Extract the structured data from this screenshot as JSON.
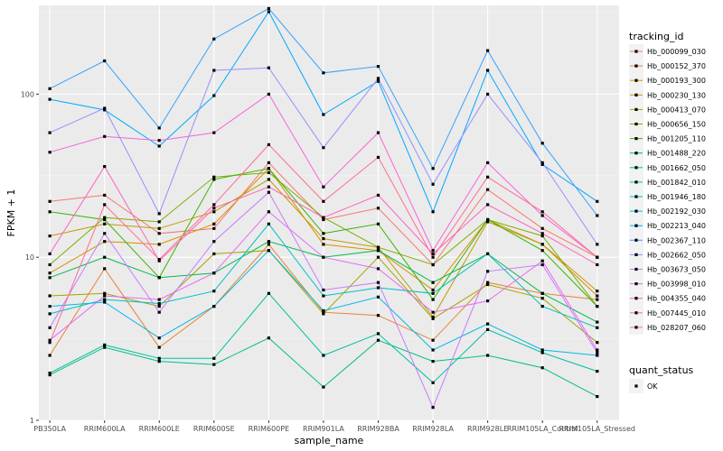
{
  "chart_data": {
    "type": "line",
    "title": "",
    "xlabel": "sample_name",
    "ylabel": "FPKM + 1",
    "y_scale": "log10",
    "ylim": [
      1,
      350
    ],
    "y_ticks": [
      1,
      10,
      100
    ],
    "y_tick_labels": [
      "1",
      "10",
      "100"
    ],
    "grid": true,
    "legend_position": "right",
    "categories": [
      "PB350LA",
      "RRIM600LA",
      "RRIM600LE",
      "RRIM600SE",
      "RRIM600PE",
      "RRIM901LA",
      "RRIM928BA",
      "RRIM928LA",
      "RRIM928LE",
      "RRIM105LA_Control",
      "RRIM105LA_Stressed"
    ],
    "colour_legend": {
      "title": "tracking_id",
      "entries": [
        "Hb_000099_030",
        "Hb_000152_370",
        "Hb_000193_300",
        "Hb_000230_130",
        "Hb_000413_070",
        "Hb_000656_150",
        "Hb_001205_110",
        "Hb_001488_220",
        "Hb_001662_050",
        "Hb_001842_010",
        "Hb_001946_180",
        "Hb_002192_030",
        "Hb_002213_040",
        "Hb_002367_110",
        "Hb_002662_050",
        "Hb_003673_050",
        "Hb_003998_010",
        "Hb_004355_040",
        "Hb_007445_010",
        "Hb_028207_060"
      ]
    },
    "shape_legend": {
      "title": "quant_status",
      "entries": [
        "OK"
      ]
    },
    "series": [
      {
        "name": "Hb_000099_030",
        "color": "#F8766D",
        "values": [
          22,
          24,
          14,
          15,
          38,
          17,
          20,
          9,
          26,
          15,
          10
        ]
      },
      {
        "name": "Hb_000152_370",
        "color": "#EA8331",
        "values": [
          2.5,
          8.5,
          2.8,
          5,
          12,
          4.6,
          4.4,
          3.1,
          7,
          6,
          5.5
        ]
      },
      {
        "name": "Hb_000193_300",
        "color": "#D89000",
        "values": [
          8,
          12.5,
          12,
          16,
          35,
          12,
          11,
          6.3,
          17,
          12,
          6.2
        ]
      },
      {
        "name": "Hb_000230_130",
        "color": "#C09B00",
        "values": [
          13.5,
          16,
          15,
          19,
          30,
          13,
          11.5,
          4.3,
          16.5,
          12,
          5.8
        ]
      },
      {
        "name": "Hb_000413_070",
        "color": "#A3A500",
        "values": [
          5.8,
          6,
          5,
          10.5,
          11,
          4.5,
          10,
          4.2,
          6.8,
          5.6,
          3
        ]
      },
      {
        "name": "Hb_000656_150",
        "color": "#7CAE00",
        "values": [
          9,
          17.5,
          16.5,
          31,
          33,
          17.5,
          11.5,
          9,
          17,
          13.5,
          5
        ]
      },
      {
        "name": "Hb_001205_110",
        "color": "#39B600",
        "values": [
          19,
          17,
          7.5,
          30,
          35,
          14,
          16,
          5.5,
          17,
          11,
          5
        ]
      },
      {
        "name": "Hb_001488_220",
        "color": "#00BB4E",
        "values": [
          7.5,
          10,
          7.5,
          8,
          12.5,
          10,
          11,
          7,
          10.5,
          6,
          4
        ]
      },
      {
        "name": "Hb_001662_050",
        "color": "#00BF7D",
        "values": [
          1.9,
          2.8,
          2.3,
          2.2,
          3.2,
          1.6,
          3.1,
          2.3,
          2.5,
          2.1,
          1.4
        ]
      },
      {
        "name": "Hb_001842_010",
        "color": "#00C1A3",
        "values": [
          1.95,
          2.9,
          2.4,
          2.4,
          6,
          2.5,
          3.4,
          1.7,
          3.6,
          2.6,
          2
        ]
      },
      {
        "name": "Hb_001946_180",
        "color": "#00BFC4",
        "values": [
          4.5,
          5.5,
          5.2,
          6.2,
          16,
          5.8,
          6.5,
          6,
          10.5,
          5,
          3.7
        ]
      },
      {
        "name": "Hb_002192_030",
        "color": "#00B8E7",
        "values": [
          5,
          5.3,
          3.2,
          5,
          11,
          4.7,
          5.7,
          2.7,
          3.9,
          2.7,
          2.5
        ]
      },
      {
        "name": "Hb_002213_040",
        "color": "#00A9FF",
        "values": [
          93,
          80,
          48,
          98,
          320,
          75,
          120,
          19,
          140,
          37,
          22
        ]
      },
      {
        "name": "Hb_002367_110",
        "color": "#35A2FF",
        "values": [
          108,
          160,
          62,
          218,
          335,
          135,
          148,
          35,
          185,
          50,
          18
        ]
      },
      {
        "name": "Hb_002662_050",
        "color": "#9590FF",
        "values": [
          58,
          82,
          18.5,
          140,
          145,
          47,
          125,
          28,
          100,
          38,
          12
        ]
      },
      {
        "name": "Hb_003673_050",
        "color": "#C77CFF",
        "values": [
          3.7,
          14,
          4.6,
          12.5,
          25,
          6.3,
          7,
          1.2,
          8.2,
          9,
          2.6
        ]
      },
      {
        "name": "Hb_003998_010",
        "color": "#E76BF3",
        "values": [
          3.1,
          5.8,
          5.5,
          8,
          19,
          10,
          8.5,
          4.6,
          5.4,
          9.5,
          2.7
        ]
      },
      {
        "name": "Hb_004355_040",
        "color": "#FA62DB",
        "values": [
          44,
          55,
          52,
          58,
          100,
          27,
          58,
          11,
          38,
          18,
          10
        ]
      },
      {
        "name": "Hb_007445_010",
        "color": "#FF62BC",
        "values": [
          10.5,
          36,
          9.5,
          20,
          27,
          17.5,
          24,
          10.5,
          21,
          14,
          9
        ]
      },
      {
        "name": "Hb_028207_060",
        "color": "#FF6C91",
        "values": [
          3,
          21,
          9.7,
          21,
          49,
          22,
          41,
          10,
          31,
          19,
          10
        ]
      }
    ]
  }
}
